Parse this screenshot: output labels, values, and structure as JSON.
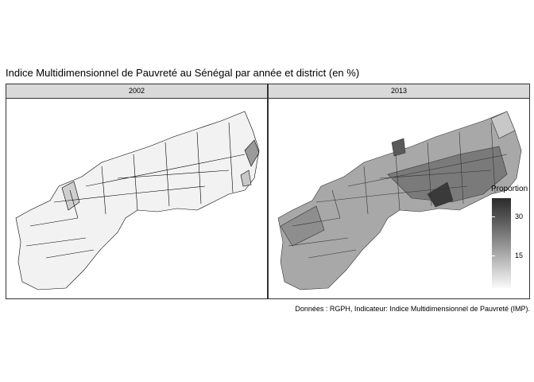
{
  "title": "Indice Multidimensionnel de Pauvreté au Sénégal par année et district (en %)",
  "caption": "Données : RGPH, Indicateur: Indice Multidimensionnel de Pauvreté (IMP).",
  "panels": [
    {
      "label": "2002"
    },
    {
      "label": "2013"
    }
  ],
  "legend": {
    "title": "Proportion",
    "ticks": [
      {
        "label": "30",
        "value": 30
      },
      {
        "label": "15",
        "value": 15
      }
    ],
    "range": [
      3,
      36
    ]
  },
  "colors": {
    "strip_fill": "#d9d9d9",
    "map_2002_fill": "#f2f2f2",
    "map_2013_fill": "#a8a8a8",
    "high": "#2b2b2b",
    "low": "#fafafa"
  }
}
